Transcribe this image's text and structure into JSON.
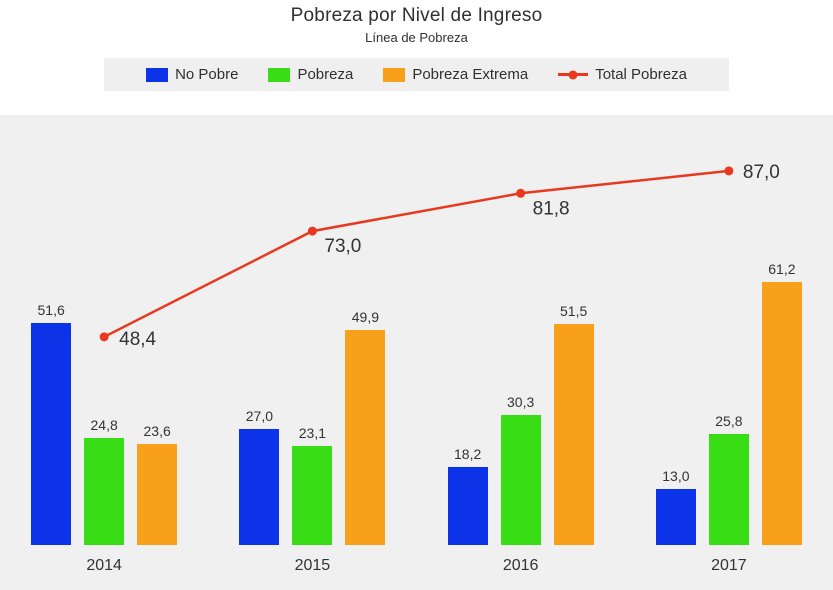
{
  "header": {
    "title": "Pobreza por Nivel de Ingreso",
    "subtitle": "Línea de Pobreza"
  },
  "chart_data": {
    "type": "bar",
    "title": "Pobreza por Nivel de Ingreso",
    "subtitle": "Línea de Pobreza",
    "categories": [
      "2014",
      "2015",
      "2016",
      "2017"
    ],
    "series": [
      {
        "name": "No Pobre",
        "type": "bar",
        "color": "#0d33e8",
        "values": [
          51.6,
          27.0,
          18.2,
          13.0
        ]
      },
      {
        "name": "Pobreza",
        "type": "bar",
        "color": "#38dd16",
        "values": [
          24.8,
          23.1,
          30.3,
          25.8
        ]
      },
      {
        "name": "Pobreza Extrema",
        "type": "bar",
        "color": "#f9a01b",
        "values": [
          23.6,
          49.9,
          51.5,
          61.2
        ]
      },
      {
        "name": "Total Pobreza",
        "type": "line",
        "color": "#e8391f",
        "values": [
          48.4,
          73.0,
          81.8,
          87.0
        ]
      }
    ],
    "xlabel": "",
    "ylabel": "",
    "ylim": [
      0,
      100
    ],
    "grid": false,
    "legend_position": "top",
    "decimal_separator": ",",
    "plot_background": "#f0f0f0",
    "legend_background": "#efefef"
  }
}
